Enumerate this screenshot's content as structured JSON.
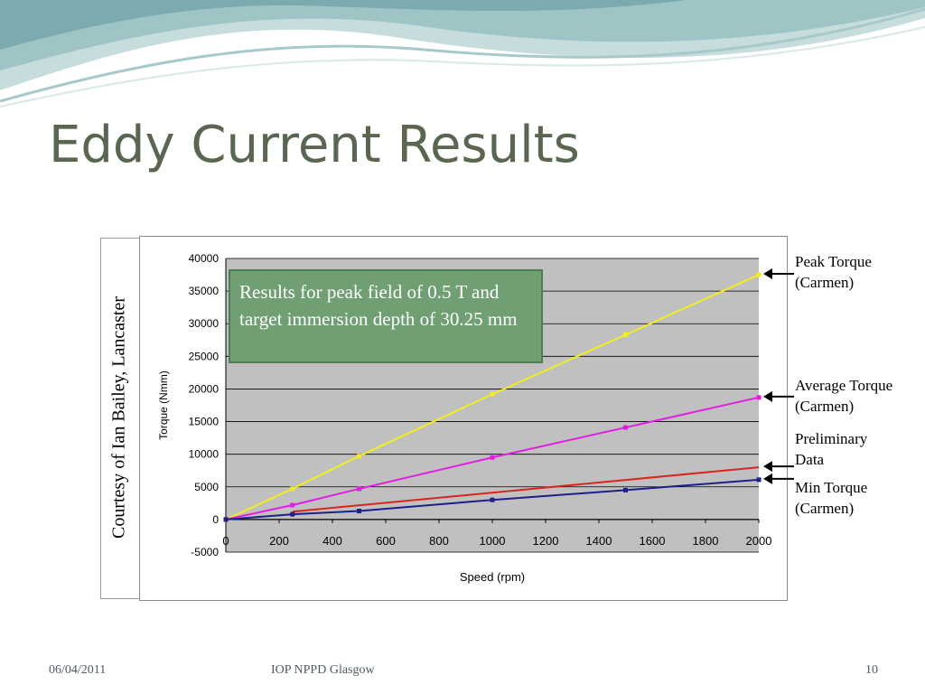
{
  "slide": {
    "title": "Eddy Current Results",
    "courtesy": "Courtesy of Ian Bailey, Lancaster",
    "callout": "Results for peak field of 0.5 T and target immersion depth of 30.25 mm",
    "footer": {
      "date": "06/04/2011",
      "event": "IOP NPPD Glasgow",
      "page": "10"
    }
  },
  "annotations": [
    {
      "text": "Peak Torque\n(Carmen)",
      "series": "peak"
    },
    {
      "text": "Average  Torque\n(Carmen)",
      "series": "average"
    },
    {
      "text": "Preliminary\nData",
      "series": "preliminary"
    },
    {
      "text": "Min Torque\n(Carmen)",
      "series": "min"
    }
  ],
  "chart_data": {
    "type": "line",
    "xlabel": "Speed (rpm)",
    "ylabel": "Torque (Nmm)",
    "xlim": [
      0,
      2000
    ],
    "ylim": [
      -5000,
      40000
    ],
    "xticks": [
      0,
      200,
      400,
      600,
      800,
      1000,
      1200,
      1400,
      1600,
      1800,
      2000
    ],
    "yticks": [
      -5000,
      0,
      5000,
      10000,
      15000,
      20000,
      25000,
      30000,
      35000,
      40000
    ],
    "grid": true,
    "series": [
      {
        "key": "peak",
        "color": "#f2ee1e",
        "marker": true,
        "x": [
          0,
          250,
          500,
          1000,
          1500,
          2000
        ],
        "y": [
          0,
          4700,
          9700,
          19200,
          28300,
          37500
        ]
      },
      {
        "key": "average",
        "color": "#e31ee3",
        "marker": true,
        "x": [
          0,
          250,
          500,
          1000,
          1500,
          2000
        ],
        "y": [
          0,
          2200,
          4700,
          9500,
          14100,
          18700
        ]
      },
      {
        "key": "preliminary",
        "color": "#d8261c",
        "marker": false,
        "x": [
          250,
          2000
        ],
        "y": [
          1200,
          8000
        ]
      },
      {
        "key": "min",
        "color": "#1c1f8c",
        "marker": true,
        "x": [
          0,
          250,
          500,
          1000,
          1500,
          2000
        ],
        "y": [
          0,
          800,
          1300,
          3000,
          4500,
          6100
        ]
      }
    ]
  }
}
